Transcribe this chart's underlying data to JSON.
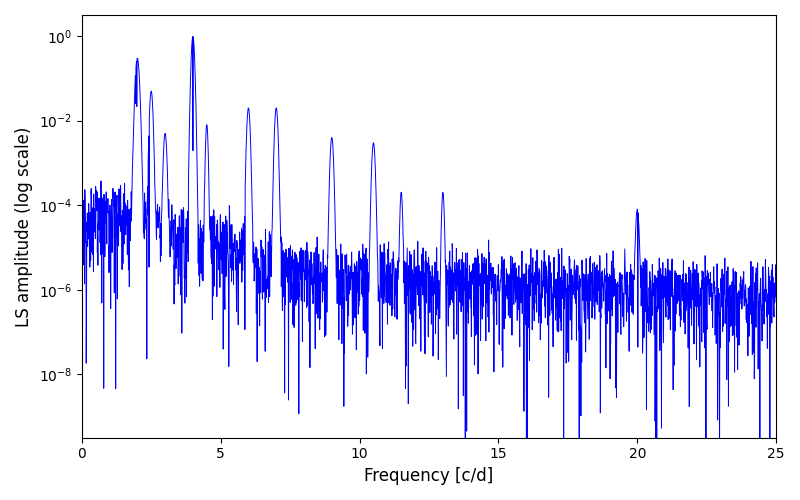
{
  "title": "",
  "xlabel": "Frequency [c/d]",
  "ylabel": "LS amplitude (log scale)",
  "line_color": "#0000ff",
  "line_width": 0.7,
  "xlim": [
    0,
    25
  ],
  "ylim_log": [
    -9.5,
    0.5
  ],
  "yscale": "log",
  "background_color": "#ffffff",
  "figsize": [
    8.0,
    5.0
  ],
  "dpi": 100,
  "n_points": 2500
}
